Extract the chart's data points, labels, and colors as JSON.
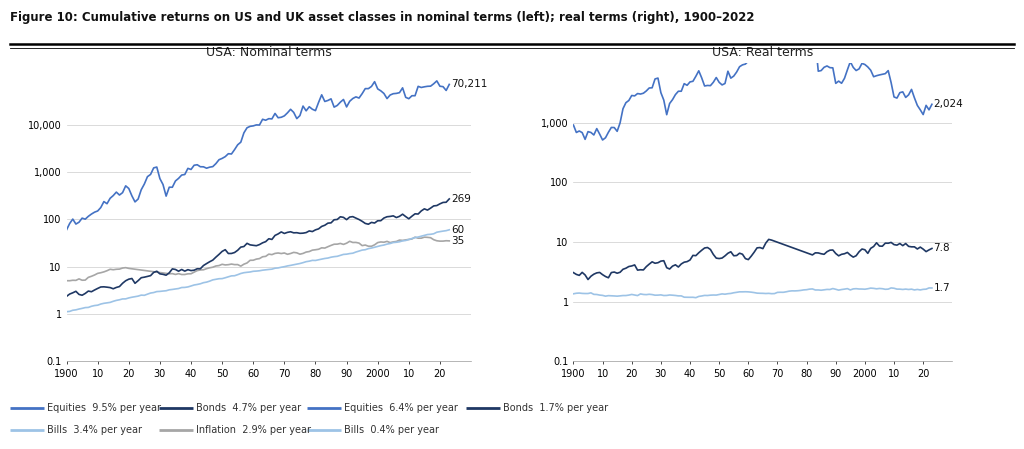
{
  "title": "Figure 10: Cumulative returns on US and UK asset classes in nominal terms (left); real terms (right), 1900–2022",
  "left_title": "USA: Nominal terms",
  "right_title": "USA: Real terms",
  "left_end_labels": {
    "equities": "70,211",
    "bonds": "269",
    "bills": "60",
    "inflation": "35"
  },
  "right_end_labels": {
    "equities": "2,024",
    "bonds": "7.8",
    "bills": "1.7"
  },
  "left_legend": [
    {
      "label": "Equities  9.5% per year",
      "color": "#4472C4",
      "lw": 1.5
    },
    {
      "label": "Bonds  4.7% per year",
      "color": "#1F3864",
      "lw": 1.5
    },
    {
      "label": "Bills  3.4% per year",
      "color": "#9DC3E6",
      "lw": 1.5
    },
    {
      "label": "Inflation  2.9% per year",
      "color": "#A6A6A6",
      "lw": 1.5
    }
  ],
  "right_legend": [
    {
      "label": "Equities  6.4% per year",
      "color": "#4472C4",
      "lw": 1.5
    },
    {
      "label": "Bonds  1.7% per year",
      "color": "#1F3864",
      "lw": 1.5
    },
    {
      "label": "Bills  0.4% per year",
      "color": "#9DC3E6",
      "lw": 1.5
    }
  ],
  "colors": {
    "equities": "#4472C4",
    "bonds": "#1F3864",
    "bills": "#9DC3E6",
    "inflation": "#A6A6A6"
  },
  "background": "#FFFFFF",
  "grid_color": "#CCCCCC",
  "ylim_left": [
    0.1,
    200000
  ],
  "ylim_right": [
    0.1,
    10000
  ],
  "yticks_left": [
    0.1,
    1,
    10,
    100,
    1000,
    10000
  ],
  "yticks_right": [
    0.1,
    1,
    10,
    100,
    1000
  ],
  "xtick_labels": [
    "1900",
    "10",
    "20",
    "30",
    "40",
    "50",
    "60",
    "70",
    "80",
    "90",
    "2000",
    "10",
    "20"
  ]
}
